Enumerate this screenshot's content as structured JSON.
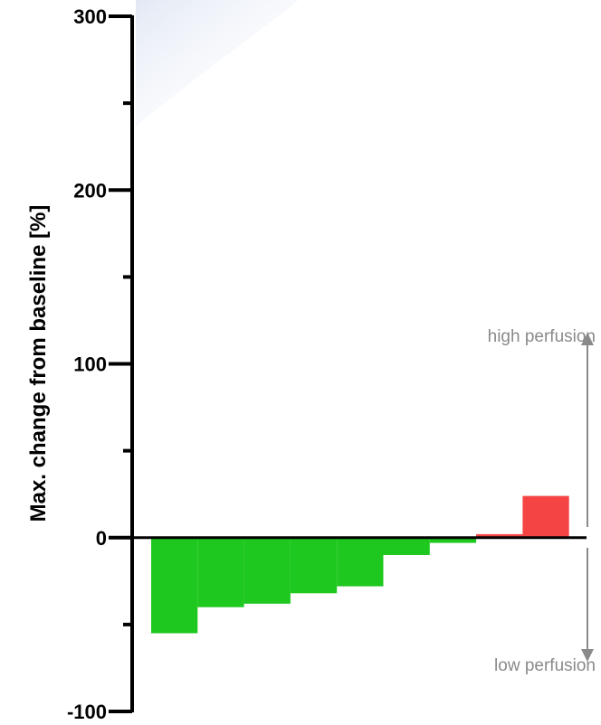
{
  "chart_data": {
    "type": "bar",
    "title": "",
    "ylabel": "Max. change from baseline [%]",
    "xlabel": "",
    "ylim": [
      -100,
      300
    ],
    "yticks": [
      300,
      200,
      100,
      0,
      -100
    ],
    "values": [
      -55,
      -40,
      -38,
      -32,
      -28,
      -10,
      -3,
      2,
      24
    ],
    "colors": {
      "negative": "#1ec81e",
      "positive": "#f44444",
      "axis": "#000000",
      "annotation": "#8a8a8a"
    },
    "annotations": {
      "high": "high perfusion",
      "low": "low perfusion"
    },
    "grid": false
  }
}
